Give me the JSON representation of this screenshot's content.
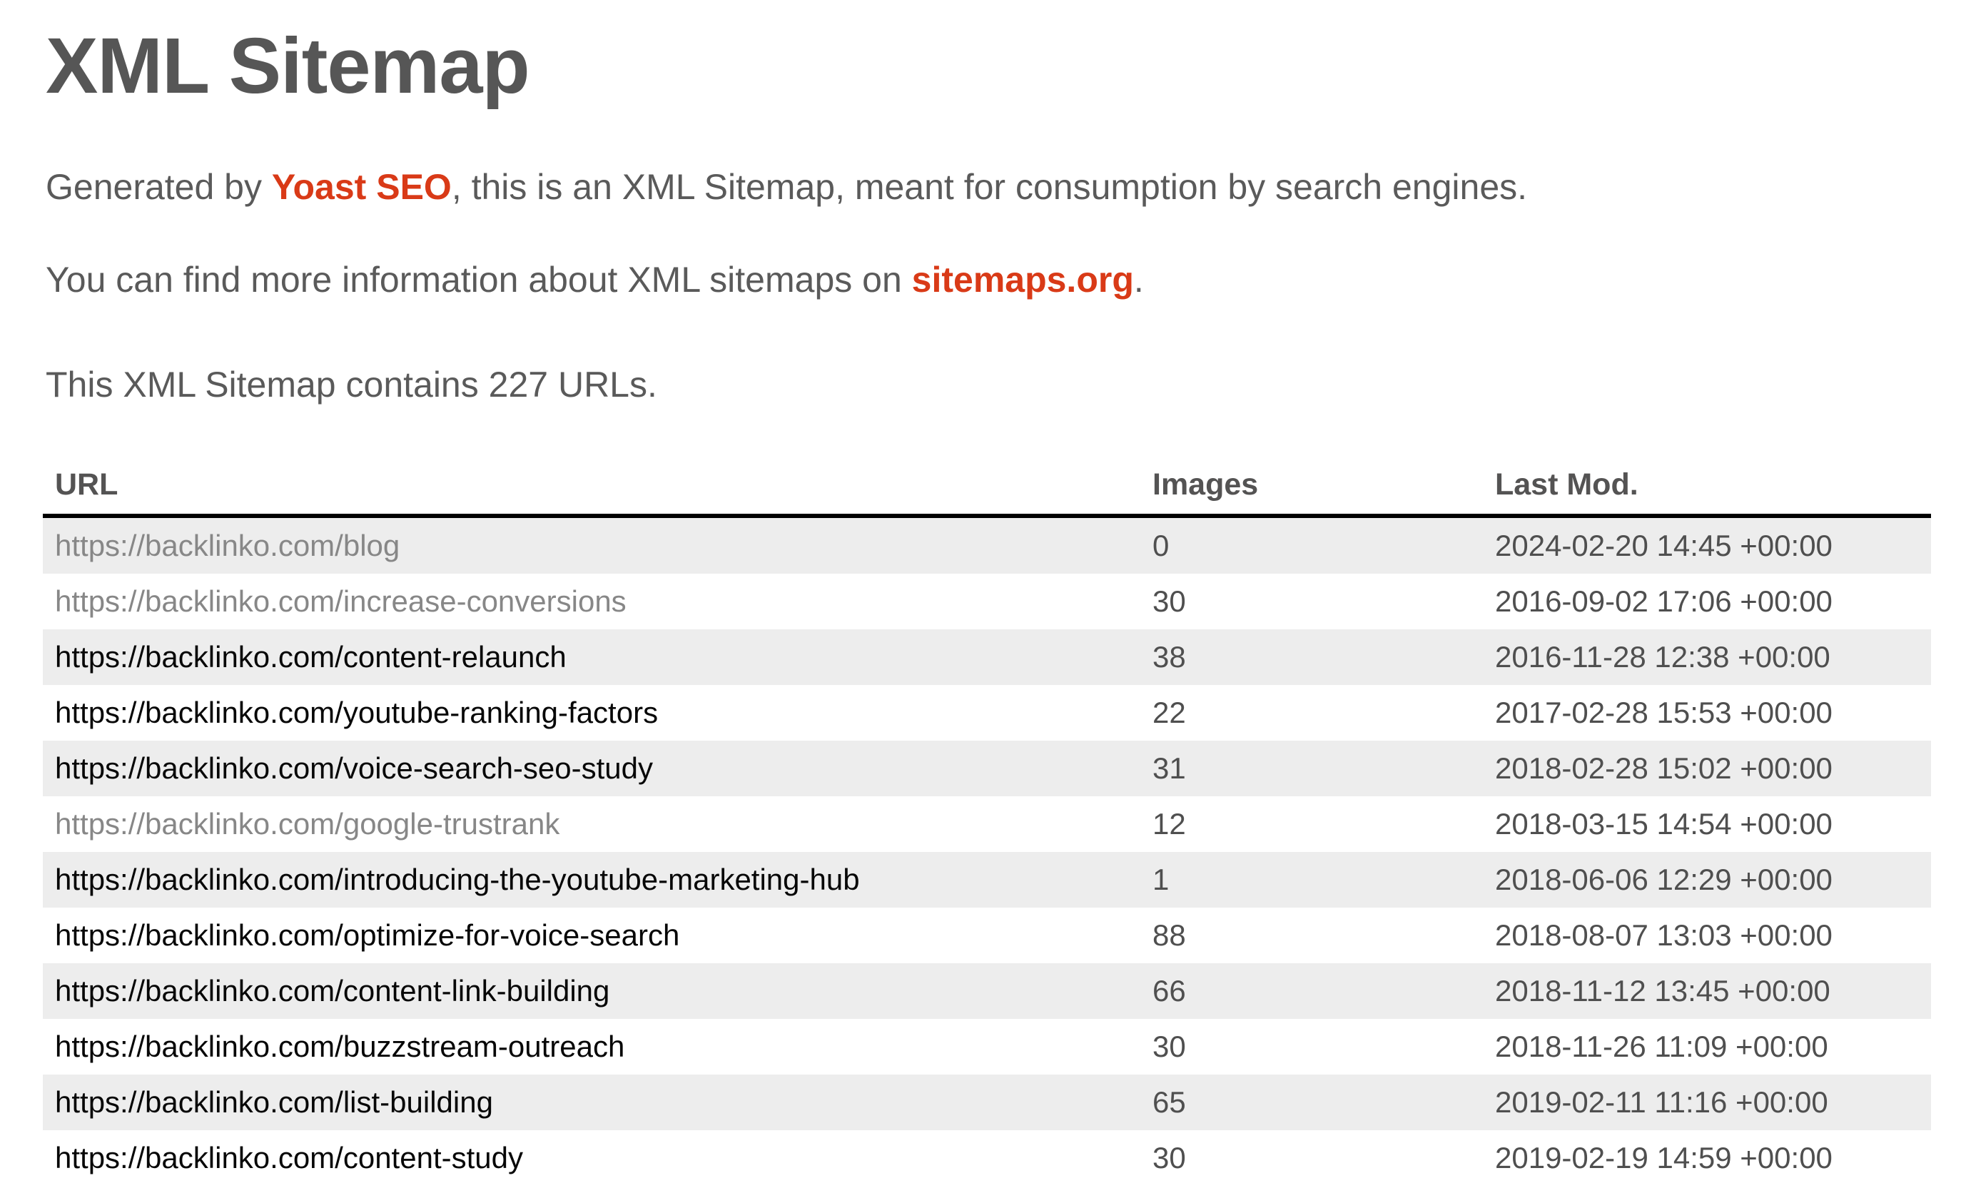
{
  "page": {
    "title": "XML Sitemap"
  },
  "intro": {
    "p1_prefix": "Generated by ",
    "p1_link": "Yoast SEO",
    "p1_suffix": ", this is an XML Sitemap, meant for consumption by search engines.",
    "p2_prefix": "You can find more information about XML sitemaps on ",
    "p2_link": "sitemaps.org",
    "p2_suffix": ".",
    "p3_prefix": "This XML Sitemap contains ",
    "p3_count": "227",
    "p3_suffix": " URLs."
  },
  "colors": {
    "accent_link": "#d93a17",
    "url_link": "#070707",
    "visited_link": "#878787",
    "row_stripe": "#ededed",
    "body_text": "#5a5a5a",
    "table_text": "#4f4f4f",
    "header_border": "#000000"
  },
  "table": {
    "headers": [
      "URL",
      "Images",
      "Last Mod."
    ],
    "rows": [
      {
        "url": "https://backlinko.com/blog",
        "images": "0",
        "last_mod": "2024-02-20 14:45 +00:00",
        "visited": true
      },
      {
        "url": "https://backlinko.com/increase-conversions",
        "images": "30",
        "last_mod": "2016-09-02 17:06 +00:00",
        "visited": true
      },
      {
        "url": "https://backlinko.com/content-relaunch",
        "images": "38",
        "last_mod": "2016-11-28 12:38 +00:00",
        "visited": false
      },
      {
        "url": "https://backlinko.com/youtube-ranking-factors",
        "images": "22",
        "last_mod": "2017-02-28 15:53 +00:00",
        "visited": false
      },
      {
        "url": "https://backlinko.com/voice-search-seo-study",
        "images": "31",
        "last_mod": "2018-02-28 15:02 +00:00",
        "visited": false
      },
      {
        "url": "https://backlinko.com/google-trustrank",
        "images": "12",
        "last_mod": "2018-03-15 14:54 +00:00",
        "visited": true
      },
      {
        "url": "https://backlinko.com/introducing-the-youtube-marketing-hub",
        "images": "1",
        "last_mod": "2018-06-06 12:29 +00:00",
        "visited": false
      },
      {
        "url": "https://backlinko.com/optimize-for-voice-search",
        "images": "88",
        "last_mod": "2018-08-07 13:03 +00:00",
        "visited": false
      },
      {
        "url": "https://backlinko.com/content-link-building",
        "images": "66",
        "last_mod": "2018-11-12 13:45 +00:00",
        "visited": false
      },
      {
        "url": "https://backlinko.com/buzzstream-outreach",
        "images": "30",
        "last_mod": "2018-11-26 11:09 +00:00",
        "visited": false
      },
      {
        "url": "https://backlinko.com/list-building",
        "images": "65",
        "last_mod": "2019-02-11 11:16 +00:00",
        "visited": false
      },
      {
        "url": "https://backlinko.com/content-study",
        "images": "30",
        "last_mod": "2019-02-19 14:59 +00:00",
        "visited": false
      }
    ]
  }
}
